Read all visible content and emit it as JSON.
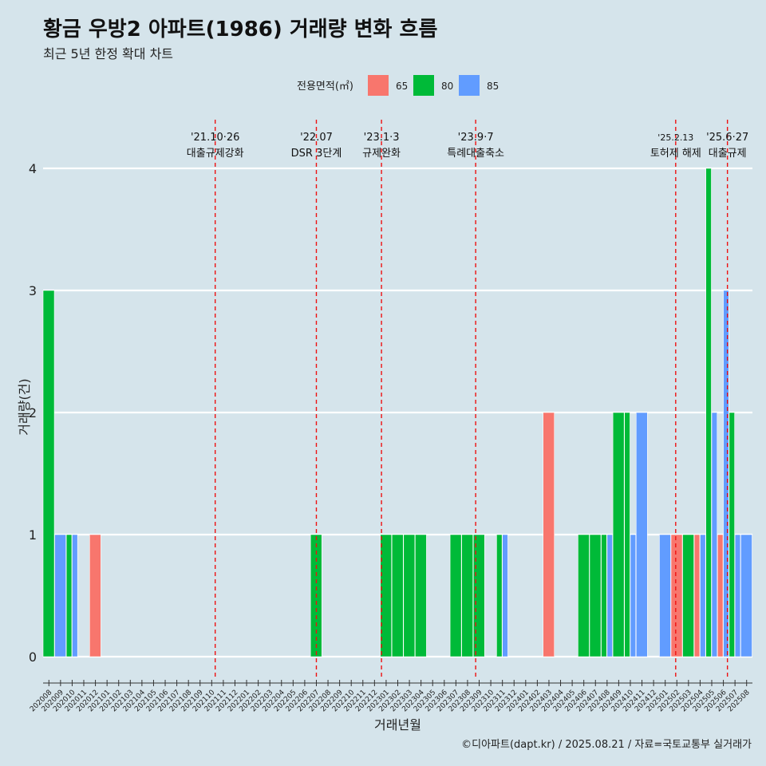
{
  "title": "황금 우방2 아파트(1986) 거래량 변화 흐름",
  "subtitle": "최근 5년 한정 확대 차트",
  "caption": "©디아파트(dapt.kr) / 2025.08.21 / 자료=국토교통부 실거래가",
  "chart_data": {
    "type": "bar",
    "title": "황금 우방2 아파트(1986) 거래량 변화 흐름",
    "subtitle": "최근 5년 한정 확대 차트",
    "xlabel": "거래년월",
    "ylabel": "거래량(건)",
    "ylim": [
      0,
      4
    ],
    "yticks": [
      0,
      1,
      2,
      3,
      4
    ],
    "legend_title": "전용면적(㎡)",
    "legend_position": "top",
    "grid": "horizontal",
    "categories": [
      "202008",
      "202009",
      "202010",
      "202011",
      "202012",
      "202101",
      "202102",
      "202103",
      "202104",
      "202105",
      "202106",
      "202107",
      "202108",
      "202109",
      "202110",
      "202111",
      "202112",
      "202201",
      "202202",
      "202203",
      "202204",
      "202205",
      "202206",
      "202207",
      "202208",
      "202209",
      "202210",
      "202211",
      "202212",
      "202301",
      "202302",
      "202303",
      "202304",
      "202305",
      "202306",
      "202307",
      "202308",
      "202309",
      "202310",
      "202311",
      "202312",
      "202401",
      "202402",
      "202403",
      "202404",
      "202405",
      "202406",
      "202407",
      "202408",
      "202409",
      "202410",
      "202411",
      "202412",
      "202501",
      "202502",
      "202503",
      "202504",
      "202505",
      "202506",
      "202507",
      "202508"
    ],
    "series": [
      {
        "name": "65",
        "color": "#f8766d",
        "values": [
          0,
          0,
          0,
          0,
          1,
          0,
          0,
          0,
          0,
          0,
          0,
          0,
          0,
          0,
          0,
          0,
          0,
          0,
          0,
          0,
          0,
          0,
          0,
          0,
          0,
          0,
          0,
          0,
          0,
          0,
          0,
          0,
          0,
          0,
          0,
          0,
          0,
          0,
          0,
          0,
          0,
          0,
          0,
          2,
          0,
          0,
          0,
          0,
          0,
          0,
          0,
          0,
          0,
          0,
          1,
          0,
          1,
          0,
          1,
          0,
          0
        ]
      },
      {
        "name": "80",
        "color": "#00ba38",
        "values": [
          3,
          0,
          1,
          0,
          0,
          0,
          0,
          0,
          0,
          0,
          0,
          0,
          0,
          0,
          0,
          0,
          0,
          0,
          0,
          0,
          0,
          0,
          0,
          1,
          0,
          0,
          0,
          0,
          0,
          1,
          1,
          1,
          1,
          0,
          0,
          1,
          1,
          1,
          0,
          1,
          0,
          0,
          0,
          0,
          0,
          0,
          1,
          1,
          1,
          2,
          2,
          0,
          0,
          0,
          0,
          1,
          0,
          4,
          0,
          2,
          0
        ]
      },
      {
        "name": "85",
        "color": "#619cff",
        "values": [
          0,
          1,
          1,
          0,
          0,
          0,
          0,
          0,
          0,
          0,
          0,
          0,
          0,
          0,
          0,
          0,
          0,
          0,
          0,
          0,
          0,
          0,
          0,
          0,
          0,
          0,
          0,
          0,
          0,
          0,
          0,
          0,
          0,
          0,
          0,
          0,
          0,
          0,
          0,
          1,
          0,
          0,
          0,
          0,
          0,
          0,
          0,
          0,
          1,
          0,
          1,
          2,
          0,
          1,
          0,
          0,
          1,
          2,
          3,
          1,
          1
        ]
      }
    ],
    "annotations": [
      {
        "date": "'21.10·26",
        "text": "대출규제강화",
        "month": "202110",
        "offset": 0.8
      },
      {
        "date": "'22.07",
        "text": "DSR 3단계",
        "month": "202207",
        "offset": 0.5
      },
      {
        "date": "'23.1·3",
        "text": "규제완화",
        "month": "202301",
        "offset": 0.1
      },
      {
        "date": "'23.9·7",
        "text": "특례대출축소",
        "month": "202309",
        "offset": 0.2
      },
      {
        "date": "'25.2.13",
        "text": "토허제 해제",
        "month": "202502",
        "offset": 0.4
      },
      {
        "date": "'25.6·27",
        "text": "대출규제",
        "month": "202506",
        "offset": 0.85
      }
    ]
  }
}
